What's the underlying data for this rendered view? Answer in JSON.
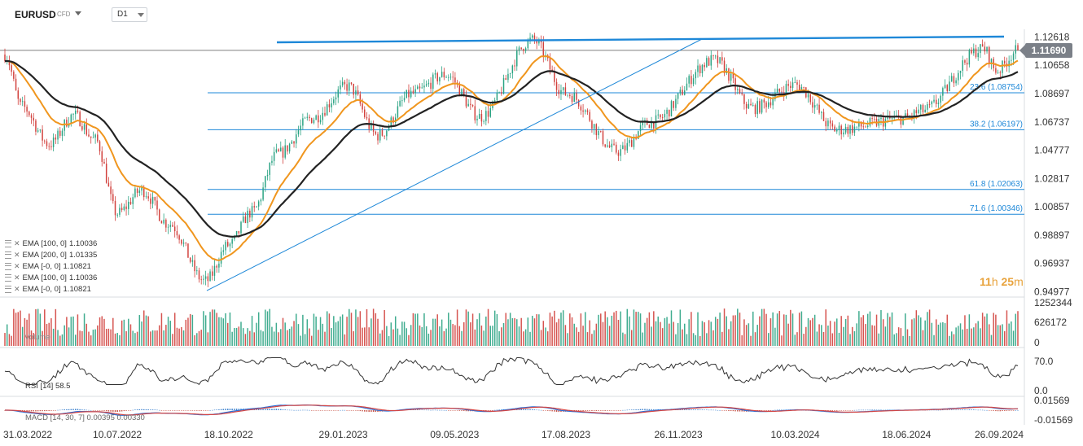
{
  "header": {
    "symbol": "EURUSD",
    "symbol_type": "CFD",
    "timeframe": "D1"
  },
  "colors": {
    "ema_fast": "#f0961e",
    "ema_slow": "#222222",
    "fib_line": "#1e88d8",
    "trend_line": "#1e88d8",
    "up": "#2aa383",
    "down": "#d2413d",
    "rsi_line": "#333333",
    "macd_line": "#2a6fd6",
    "signal_line": "#d24545"
  },
  "chart_data": {
    "type": "candlestick",
    "price_axis": {
      "ticks": [
        "1.12618",
        "1.10658",
        "1.08697",
        "1.06737",
        "1.04777",
        "1.02817",
        "1.00857",
        "0.98897",
        "0.96937",
        "0.94977"
      ],
      "ylim": [
        0.9478,
        1.1315
      ]
    },
    "last_price": "1.11690",
    "x_axis_dates": [
      "31.03.2022",
      "10.07.2022",
      "18.10.2022",
      "29.01.2023",
      "09.05.2023",
      "17.08.2023",
      "26.11.2023",
      "10.03.2024",
      "18.06.2024",
      "26.09.2024"
    ],
    "fibonacci_levels": [
      {
        "label": "23.6 (1.08754)",
        "price": 1.08754
      },
      {
        "label": "38.2 (1.06197)",
        "price": 1.06197
      },
      {
        "label": "61.8 (1.02063)",
        "price": 1.02063
      },
      {
        "label": "71.6 (1.00346)",
        "price": 1.00346
      }
    ],
    "price_series_approx": [
      [
        "31.03.2022",
        1.114
      ],
      [
        "15.04.2022",
        1.078
      ],
      [
        "10.05.2022",
        1.052
      ],
      [
        "01.06.2022",
        1.072
      ],
      [
        "20.06.2022",
        1.055
      ],
      [
        "10.07.2022",
        1.004
      ],
      [
        "01.08.2022",
        1.02
      ],
      [
        "25.08.2022",
        0.997
      ],
      [
        "27.09.2022",
        0.957
      ],
      [
        "18.10.2022",
        0.982
      ],
      [
        "08.11.2022",
        1.005
      ],
      [
        "01.12.2022",
        1.045
      ],
      [
        "01.01.2023",
        1.07
      ],
      [
        "02.02.2023",
        1.092
      ],
      [
        "01.03.2023",
        1.058
      ],
      [
        "01.04.2023",
        1.087
      ],
      [
        "01.05.2023",
        1.1
      ],
      [
        "01.06.2023",
        1.071
      ],
      [
        "18.07.2023",
        1.124
      ],
      [
        "17.08.2023",
        1.087
      ],
      [
        "03.10.2023",
        1.047
      ],
      [
        "01.11.2023",
        1.067
      ],
      [
        "28.12.2023",
        1.11
      ],
      [
        "01.02.2024",
        1.077
      ],
      [
        "10.03.2024",
        1.093
      ],
      [
        "16.04.2024",
        1.062
      ],
      [
        "18.06.2024",
        1.07
      ],
      [
        "01.07.2024",
        1.075
      ],
      [
        "26.08.2024",
        1.118
      ],
      [
        "07.09.2024",
        1.103
      ],
      [
        "26.09.2024",
        1.1169
      ]
    ],
    "indicators": {
      "legend": [
        {
          "label": "EMA [100, 0]",
          "value": "1.10036"
        },
        {
          "label": "EMA [200, 0]",
          "value": "1.01335"
        },
        {
          "label": "EMA [-0, 0]",
          "value": "1.10821"
        },
        {
          "label": "EMA [100, 0]",
          "value": "1.10036"
        },
        {
          "label": "EMA [-0, 0]",
          "value": "1.10821"
        }
      ]
    },
    "volume": {
      "label": "Volume",
      "ticks": [
        "1252344",
        "626172",
        "0"
      ]
    },
    "rsi": {
      "label": "RSI [14]",
      "value": "58.5",
      "ticks": [
        "70.0",
        "0.0"
      ],
      "ylim": [
        0,
        100
      ]
    },
    "macd": {
      "label": "MACD [14, 30, 7]",
      "value": "0.00395  0.00330",
      "ticks": [
        "0.01569",
        "-0.01569"
      ]
    }
  },
  "timer": {
    "hours": "11",
    "h_unit": "h",
    "minutes": "25",
    "m_unit": "m"
  }
}
